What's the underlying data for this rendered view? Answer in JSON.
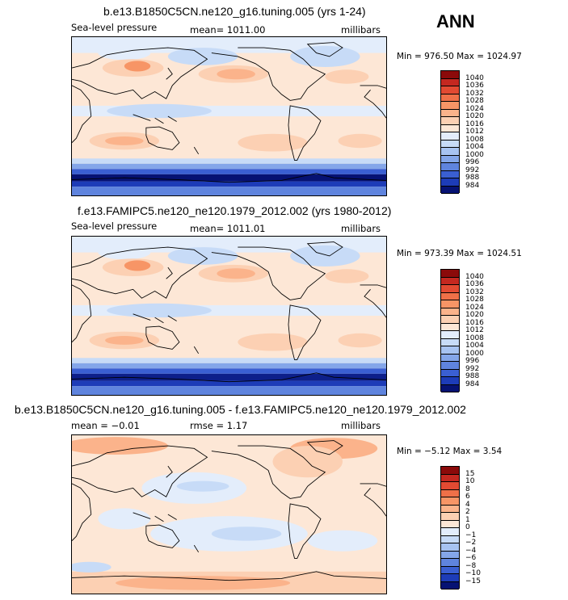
{
  "season": "ANN",
  "colors": {
    "pos": [
      "#fde7d6",
      "#fcd0b3",
      "#fbb38b",
      "#f79566",
      "#ef7048",
      "#e24a32",
      "#c42820",
      "#8b0a0a"
    ],
    "neg": [
      "#e3edfb",
      "#c7dbf7",
      "#a7c3f1",
      "#84a6e9",
      "#5f84de",
      "#3a5fd2",
      "#1d3cb8",
      "#0d1f8a",
      "#061273"
    ],
    "neutral": "#ffffff",
    "coast": "#000000"
  },
  "chart_data": [
    {
      "type": "heatmap",
      "title": "b.e13.B1850C5CN.ne120_g16.tuning.005 (yrs 1-24)",
      "left_label": "Sea-level pressure",
      "center_label": "mean= 1011.00",
      "right_label": "millibars",
      "minmax": "Min = 976.50 Max = 1024.97",
      "colorbar": [
        "1040",
        "1036",
        "1032",
        "1028",
        "1024",
        "1020",
        "1016",
        "1012",
        "1008",
        "1004",
        "1000",
        "996",
        "992",
        "988",
        "984"
      ]
    },
    {
      "type": "heatmap",
      "title": "f.e13.FAMIPC5.ne120_ne120.1979_2012.002 (yrs 1980-2012)",
      "left_label": "Sea-level pressure",
      "center_label": "mean= 1011.01",
      "right_label": "millibars",
      "minmax": "Min = 973.39 Max = 1024.51",
      "colorbar": [
        "1040",
        "1036",
        "1032",
        "1028",
        "1024",
        "1020",
        "1016",
        "1012",
        "1008",
        "1004",
        "1000",
        "996",
        "992",
        "988",
        "984"
      ]
    },
    {
      "type": "heatmap",
      "title": "b.e13.B1850C5CN.ne120_g16.tuning.005 - f.e13.FAMIPC5.ne120_ne120.1979_2012.002",
      "left_label": "mean =  −0.01",
      "center_label": "rmse =   1.17",
      "right_label": "millibars",
      "minmax": "Min =  −5.12 Max =   3.54",
      "colorbar": [
        "15",
        "10",
        "8",
        "6",
        "4",
        "2",
        "1",
        "0",
        "−1",
        "−2",
        "−4",
        "−6",
        "−8",
        "−10",
        "−15"
      ]
    }
  ]
}
